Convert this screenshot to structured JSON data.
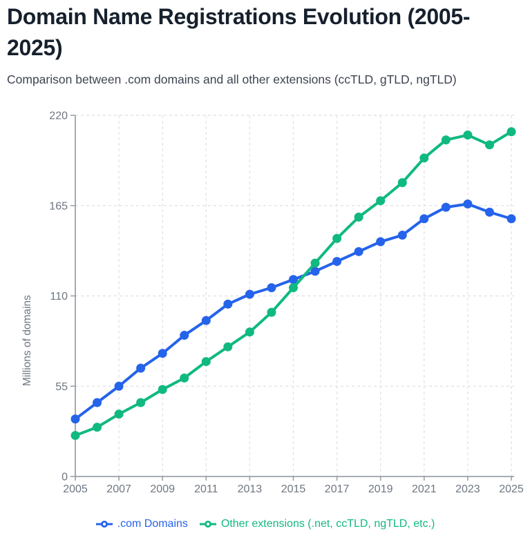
{
  "header": {
    "title": "Domain Name Registrations Evolution (2005-2025)",
    "subtitle": "Comparison between .com domains and all other extensions (ccTLD, gTLD, ngTLD)"
  },
  "chart_data": {
    "type": "line",
    "title": "Domain Name Registrations Evolution (2005-2025)",
    "xlabel": "",
    "ylabel": "Millions of domains",
    "x": [
      2005,
      2006,
      2007,
      2008,
      2009,
      2010,
      2011,
      2012,
      2013,
      2014,
      2015,
      2016,
      2017,
      2018,
      2019,
      2020,
      2021,
      2022,
      2023,
      2024,
      2025
    ],
    "x_tick_labels": [
      "2005",
      "2007",
      "2009",
      "2011",
      "2013",
      "2015",
      "2017",
      "2019",
      "2021",
      "2023",
      "2025"
    ],
    "y_ticks": [
      0,
      55,
      110,
      165,
      220
    ],
    "ylim": [
      0,
      220
    ],
    "grid": "dashed",
    "legend_position": "bottom",
    "series": [
      {
        "name": ".com Domains",
        "color": "#2563eb",
        "values": [
          35,
          45,
          55,
          66,
          75,
          86,
          95,
          105,
          111,
          115,
          120,
          125,
          131,
          137,
          143,
          147,
          157,
          164,
          166,
          161,
          157
        ]
      },
      {
        "name": "Other extensions (.net, ccTLD, ngTLD, etc.)",
        "color": "#10b981",
        "values": [
          25,
          30,
          38,
          45,
          53,
          60,
          70,
          79,
          88,
          100,
          115,
          130,
          145,
          158,
          168,
          179,
          194,
          205,
          208,
          202,
          210
        ]
      }
    ]
  }
}
